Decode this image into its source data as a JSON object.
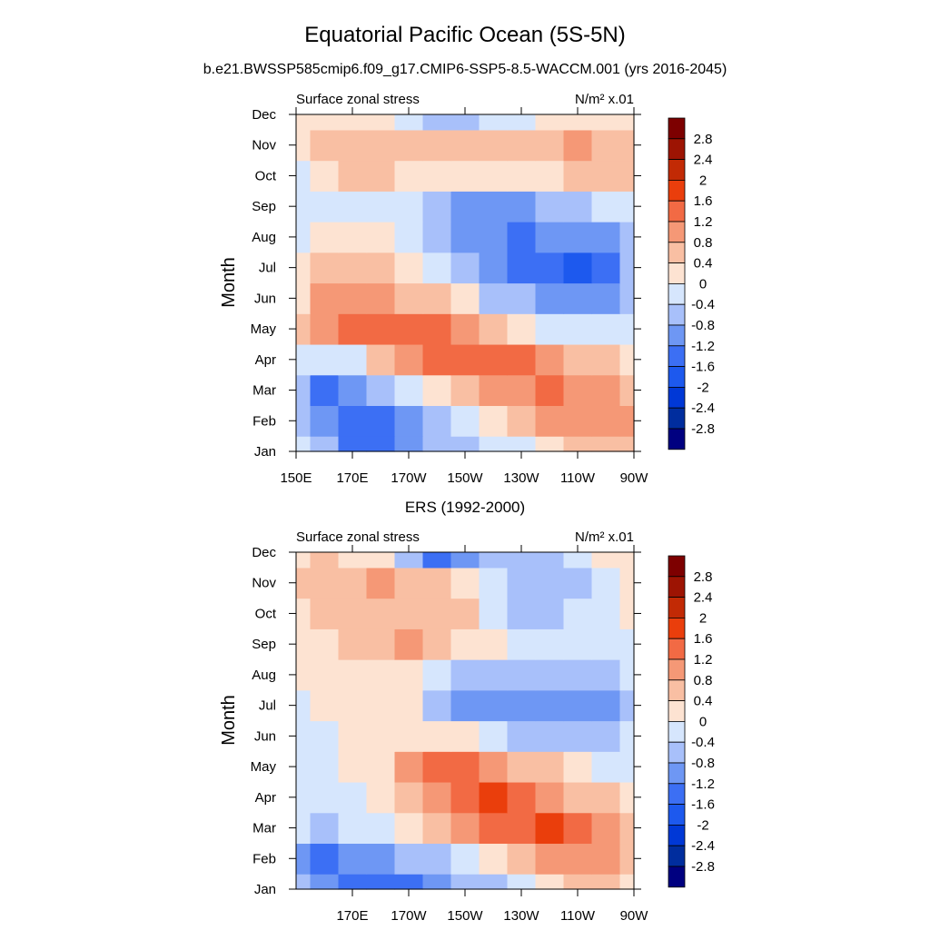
{
  "title": "Equatorial Pacific Ocean (5S-5N)",
  "subtitle": "b.e21.BWSSP585cmip6.f09_g17.CMIP6-SSP5-8.5-WACCM.001 (yrs 2016-2045)",
  "colorbar": {
    "labels": [
      "2.8",
      "2.4",
      "2",
      "1.6",
      "1.2",
      "0.8",
      "0.4",
      "0",
      "-0.4",
      "-0.8",
      "-1.2",
      "-1.6",
      "-2",
      "-2.4",
      "-2.8"
    ],
    "levels": [
      2.8,
      2.4,
      2,
      1.6,
      1.2,
      0.8,
      0.4,
      0,
      -0.4,
      -0.8,
      -1.2,
      -1.6,
      -2,
      -2.4,
      -2.8
    ],
    "colors": [
      "#000080",
      "#002d9e",
      "#0038d6",
      "#1d59ee",
      "#3c6ff4",
      "#6e97f4",
      "#a8c0fa",
      "#d6e6fd",
      "#fde3d2",
      "#f9bfa3",
      "#f59876",
      "#f26a44",
      "#ea3e0c",
      "#c22a05",
      "#9d1403",
      "#7d0000"
    ]
  },
  "chart_data": [
    {
      "type": "heatmap",
      "title": "",
      "left_label": "Surface zonal stress",
      "right_label": "N/m² x.01",
      "ylabel": "Month",
      "xlabel": "",
      "x_ticks": [
        "150E",
        "170E",
        "170W",
        "150W",
        "130W",
        "110W",
        "90W"
      ],
      "y_ticks": [
        "Jan",
        "Feb",
        "Mar",
        "Apr",
        "May",
        "Jun",
        "Jul",
        "Aug",
        "Sep",
        "Oct",
        "Nov",
        "Dec"
      ],
      "x_range": [
        "150E",
        "90W"
      ],
      "y_range": [
        "Jan",
        "Dec"
      ],
      "x": [
        150,
        160,
        170,
        180,
        190,
        200,
        210,
        220,
        230,
        240,
        250,
        260,
        270
      ],
      "y_months": [
        1,
        2,
        3,
        4,
        5,
        6,
        7,
        8,
        9,
        10,
        11,
        12
      ],
      "values": [
        [
          -0.3,
          -0.8,
          -1.4,
          -1.3,
          -1.0,
          -0.8,
          -0.5,
          -0.3,
          -0.1,
          0.2,
          0.4,
          0.6,
          0.6
        ],
        [
          -0.7,
          -1.2,
          -1.5,
          -1.4,
          -1.1,
          -0.8,
          -0.4,
          0.0,
          0.4,
          0.8,
          0.9,
          0.9,
          0.8
        ],
        [
          -0.6,
          -1.3,
          -1.1,
          -0.8,
          -0.4,
          0.0,
          0.5,
          0.9,
          1.1,
          1.2,
          1.1,
          0.9,
          0.7
        ],
        [
          -0.2,
          -0.4,
          -0.1,
          0.5,
          1.1,
          1.4,
          1.5,
          1.4,
          1.3,
          1.0,
          0.7,
          0.4,
          0.2
        ],
        [
          0.4,
          0.9,
          1.3,
          1.5,
          1.5,
          1.3,
          1.0,
          0.6,
          0.2,
          -0.2,
          -0.4,
          -0.4,
          -0.2
        ],
        [
          0.3,
          0.8,
          0.9,
          0.9,
          0.7,
          0.4,
          0.0,
          -0.5,
          -0.8,
          -1.0,
          -1.1,
          -0.9,
          -0.6
        ],
        [
          0.1,
          0.4,
          0.5,
          0.4,
          0.2,
          -0.2,
          -0.6,
          -1.0,
          -1.3,
          -1.6,
          -1.7,
          -1.4,
          -0.8
        ],
        [
          -0.1,
          0.1,
          0.2,
          0.0,
          -0.3,
          -0.7,
          -1.0,
          -1.2,
          -1.3,
          -1.2,
          -1.1,
          -0.9,
          -0.5
        ],
        [
          -0.3,
          -0.3,
          -0.3,
          -0.3,
          -0.4,
          -0.7,
          -1.0,
          -1.0,
          -0.9,
          -0.7,
          -0.5,
          -0.3,
          -0.1
        ],
        [
          -0.1,
          0.2,
          0.4,
          0.4,
          0.2,
          0.1,
          0.0,
          0.0,
          0.1,
          0.3,
          0.5,
          0.6,
          0.5
        ],
        [
          0.3,
          0.5,
          0.7,
          0.6,
          0.5,
          0.4,
          0.4,
          0.4,
          0.5,
          0.6,
          0.9,
          0.7,
          0.6
        ],
        [
          0.2,
          0.3,
          0.3,
          0.1,
          -0.2,
          -0.5,
          -0.7,
          -0.4,
          -0.2,
          0.0,
          0.2,
          0.3,
          0.3
        ]
      ]
    },
    {
      "type": "heatmap",
      "title": "ERS (1992-2000)",
      "left_label": "Surface zonal stress",
      "right_label": "N/m² x.01",
      "ylabel": "Month",
      "xlabel": "",
      "x_ticks": [
        "170E",
        "170W",
        "150W",
        "130W",
        "110W",
        "90W"
      ],
      "y_ticks": [
        "Jan",
        "Feb",
        "Mar",
        "Apr",
        "May",
        "Jun",
        "Jul",
        "Aug",
        "Sep",
        "Oct",
        "Nov",
        "Dec"
      ],
      "x_range": [
        "150E",
        "90W"
      ],
      "y_range": [
        "Jan",
        "Dec"
      ],
      "x": [
        150,
        160,
        170,
        180,
        190,
        200,
        210,
        220,
        230,
        240,
        250,
        260,
        270
      ],
      "y_months": [
        1,
        2,
        3,
        4,
        5,
        6,
        7,
        8,
        9,
        10,
        11,
        12
      ],
      "values": [
        [
          -0.7,
          -1.2,
          -1.4,
          -1.5,
          -1.3,
          -1.1,
          -0.8,
          -0.5,
          -0.1,
          0.2,
          0.4,
          0.4,
          0.3
        ],
        [
          -1.0,
          -1.4,
          -1.1,
          -0.9,
          -0.8,
          -0.6,
          -0.2,
          0.3,
          0.6,
          0.8,
          0.9,
          0.8,
          0.4
        ],
        [
          -0.4,
          -0.6,
          -0.4,
          -0.2,
          0.2,
          0.5,
          0.9,
          1.3,
          1.5,
          1.7,
          1.4,
          1.0,
          0.6
        ],
        [
          -0.2,
          -0.4,
          -0.1,
          0.1,
          0.4,
          0.9,
          1.4,
          1.6,
          1.4,
          1.1,
          0.7,
          0.4,
          0.1
        ],
        [
          -0.3,
          -0.2,
          0.0,
          0.3,
          0.9,
          1.2,
          1.2,
          1.0,
          0.6,
          0.4,
          0.1,
          -0.1,
          -0.1
        ],
        [
          -0.4,
          -0.1,
          0.1,
          0.3,
          0.3,
          0.2,
          0.1,
          -0.2,
          -0.5,
          -0.5,
          -0.6,
          -0.5,
          -0.3
        ],
        [
          -0.1,
          0.1,
          0.3,
          0.2,
          0.0,
          -0.6,
          -1.1,
          -1.2,
          -1.1,
          -1.0,
          -1.2,
          -1.0,
          -0.6
        ],
        [
          0.0,
          0.2,
          0.3,
          0.3,
          0.1,
          -0.2,
          -0.6,
          -0.8,
          -0.7,
          -0.7,
          -0.8,
          -0.7,
          -0.4
        ],
        [
          0.2,
          0.3,
          0.5,
          0.6,
          0.8,
          0.6,
          0.3,
          0.0,
          -0.3,
          -0.4,
          -0.4,
          -0.2,
          -0.1
        ],
        [
          0.2,
          0.4,
          0.6,
          0.6,
          0.7,
          0.6,
          0.4,
          -0.2,
          -0.6,
          -0.6,
          -0.4,
          -0.2,
          0.1
        ],
        [
          0.4,
          0.6,
          0.6,
          0.8,
          0.6,
          0.5,
          0.2,
          -0.3,
          -0.7,
          -0.8,
          -0.5,
          -0.1,
          0.2
        ],
        [
          0.3,
          0.4,
          0.3,
          0.1,
          -0.6,
          -1.4,
          -1.2,
          -0.8,
          -0.7,
          -0.5,
          -0.3,
          0.0,
          0.2
        ]
      ]
    }
  ]
}
